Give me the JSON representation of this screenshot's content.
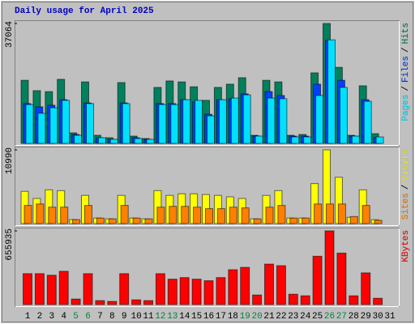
{
  "chart_data": [
    {
      "type": "bar",
      "title": "Daily usage for April 2025",
      "legend_separator": "/",
      "ylim": [
        0,
        37064
      ],
      "yticks": [
        37064
      ],
      "series": [
        {
          "name": "Hits",
          "color": "#00805c",
          "values": [
            19500,
            16300,
            16000,
            19800,
            3260,
            19000,
            2500,
            1750,
            18800,
            2250,
            1500,
            17300,
            19300,
            19000,
            17500,
            13300,
            17300,
            18300,
            20300,
            2500,
            19500,
            19000,
            2500,
            2750,
            21800,
            37064,
            23500,
            2500,
            17800,
            3000,
            null
          ]
        },
        {
          "name": "Files",
          "color": "#0040ff",
          "values": [
            12300,
            11300,
            11800,
            13500,
            2750,
            12500,
            1750,
            1250,
            12500,
            1750,
            1250,
            12300,
            12300,
            13500,
            12800,
            9000,
            13500,
            13800,
            15300,
            2250,
            16000,
            14800,
            2250,
            2250,
            18300,
            31800,
            19500,
            2250,
            13500,
            1750,
            null
          ]
        },
        {
          "name": "Pages",
          "color": "#00e0ff",
          "values": [
            12000,
            9300,
            11000,
            13300,
            2500,
            12300,
            1750,
            1250,
            12300,
            1500,
            1250,
            12000,
            12000,
            13500,
            13300,
            8500,
            13500,
            14000,
            15000,
            2250,
            14000,
            13800,
            2000,
            2000,
            14800,
            32000,
            17300,
            2250,
            13000,
            2000,
            null
          ]
        }
      ]
    },
    {
      "type": "bar",
      "ylim": [
        0,
        10990
      ],
      "yticks": [
        10990
      ],
      "series": [
        {
          "name": "Visits",
          "color": "#ffff00",
          "values": [
            4800,
            3740,
            5030,
            4910,
            580,
            4200,
            820,
            700,
            4200,
            820,
            700,
            4910,
            4200,
            4440,
            4440,
            4330,
            4200,
            3980,
            3740,
            700,
            4200,
            4910,
            820,
            820,
            5960,
            10990,
            6900,
            940,
            5030,
            580,
            null
          ]
        },
        {
          "name": "Sites",
          "color": "#ff8000",
          "values": [
            2700,
            2920,
            2450,
            2450,
            580,
            2700,
            820,
            700,
            2700,
            820,
            700,
            2450,
            2570,
            2570,
            2450,
            2220,
            2220,
            2450,
            2340,
            700,
            2450,
            2700,
            820,
            820,
            2920,
            2920,
            2920,
            1050,
            2700,
            470,
            null
          ]
        }
      ]
    },
    {
      "type": "bar",
      "ylim": [
        0,
        655935
      ],
      "yticks": [
        655935
      ],
      "categories": [
        "1",
        "2",
        "3",
        "4",
        "5",
        "6",
        "7",
        "8",
        "9",
        "10",
        "11",
        "12",
        "13",
        "14",
        "15",
        "16",
        "17",
        "18",
        "19",
        "20",
        "21",
        "22",
        "23",
        "24",
        "25",
        "26",
        "27",
        "28",
        "29",
        "30",
        "31"
      ],
      "category_colors": [
        "#000000",
        "#000000",
        "#000000",
        "#000000",
        "#008040",
        "#008040",
        "#000000",
        "#000000",
        "#000000",
        "#000000",
        "#000000",
        "#008040",
        "#008040",
        "#000000",
        "#000000",
        "#000000",
        "#000000",
        "#000000",
        "#008040",
        "#008040",
        "#000000",
        "#000000",
        "#000000",
        "#000000",
        "#000000",
        "#008040",
        "#008040",
        "#000000",
        "#000000",
        "#000000",
        "#000000"
      ],
      "series": [
        {
          "name": "KBytes",
          "color": "#ff0000",
          "values": [
            275000,
            275000,
            261000,
            296000,
            49000,
            275000,
            35000,
            28000,
            275000,
            42000,
            35000,
            275000,
            226000,
            240000,
            226000,
            212000,
            240000,
            310000,
            331000,
            85000,
            360000,
            346000,
            92000,
            78000,
            430000,
            655935,
            458000,
            78000,
            282000,
            56000,
            null
          ]
        }
      ]
    }
  ]
}
